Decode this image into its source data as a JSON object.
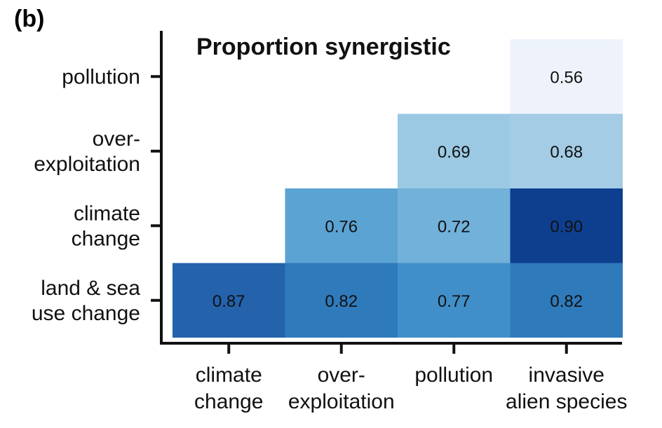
{
  "panel_label": "(b)",
  "chart_data": {
    "type": "heatmap",
    "title": "Proportion synergistic",
    "x_categories": [
      [
        "climate",
        "change"
      ],
      [
        "over-",
        "exploitation"
      ],
      [
        "pollution"
      ],
      [
        "invasive",
        "alien species"
      ]
    ],
    "y_categories": [
      [
        "land & sea",
        "use change"
      ],
      [
        "climate",
        "change"
      ],
      [
        "over-",
        "exploitation"
      ],
      [
        "pollution"
      ]
    ],
    "cells": [
      {
        "x": 0,
        "y": 0,
        "value": 0.87,
        "label": "0.87",
        "color": "#2462ac"
      },
      {
        "x": 1,
        "y": 0,
        "value": 0.82,
        "label": "0.82",
        "color": "#2f7abb"
      },
      {
        "x": 2,
        "y": 0,
        "value": 0.77,
        "label": "0.77",
        "color": "#418fc8"
      },
      {
        "x": 3,
        "y": 0,
        "value": 0.82,
        "label": "0.82",
        "color": "#2f7abb"
      },
      {
        "x": 1,
        "y": 1,
        "value": 0.76,
        "label": "0.76",
        "color": "#5ba3d3"
      },
      {
        "x": 2,
        "y": 1,
        "value": 0.72,
        "label": "0.72",
        "color": "#71b1da"
      },
      {
        "x": 3,
        "y": 1,
        "value": 0.9,
        "label": "0.90",
        "color": "#0e3f8f"
      },
      {
        "x": 2,
        "y": 2,
        "value": 0.69,
        "label": "0.69",
        "color": "#9bc8e3"
      },
      {
        "x": 3,
        "y": 2,
        "value": 0.68,
        "label": "0.68",
        "color": "#a4cce4"
      },
      {
        "x": 3,
        "y": 3,
        "value": 0.56,
        "label": "0.56",
        "color": "#eef3fb"
      }
    ],
    "grid": false,
    "legend": "none"
  }
}
